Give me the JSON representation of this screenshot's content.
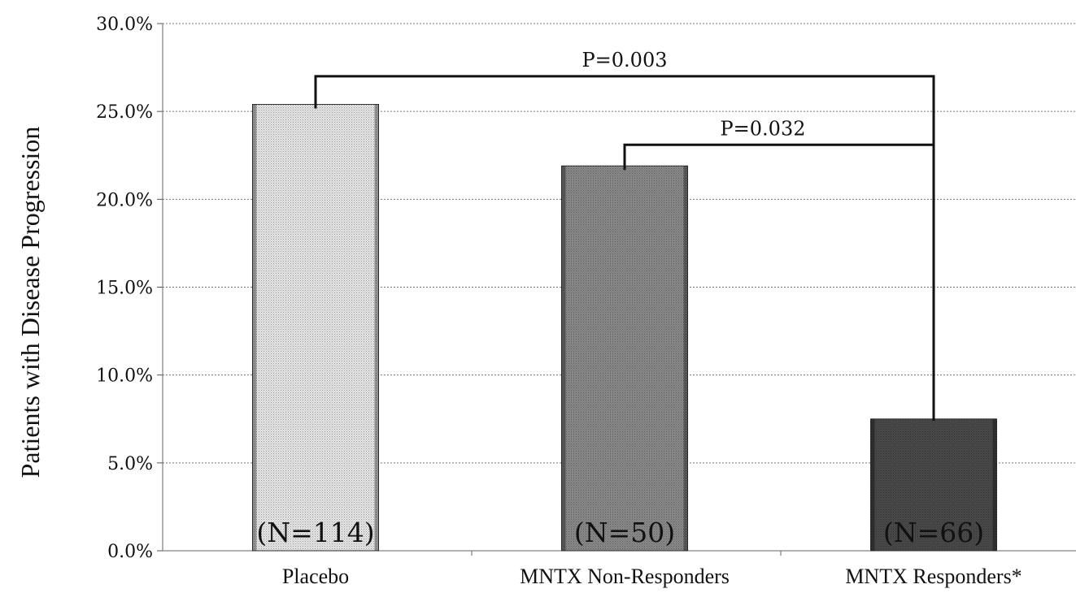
{
  "chart_data": {
    "type": "bar",
    "categories": [
      "Placebo",
      "MNTX Non-Responders",
      "MNTX Responders*"
    ],
    "values": [
      25.4,
      21.9,
      7.5
    ],
    "n_labels": [
      "(N=114)",
      "(N=50)",
      "(N=66)"
    ],
    "ylabel": "Patients with Disease Progression",
    "xlabel": "",
    "ylim": [
      0,
      30
    ],
    "yticks": [
      0,
      5,
      10,
      15,
      20,
      25,
      30
    ],
    "ytick_labels": [
      "0.0%",
      "5.0%",
      "10.0%",
      "15.0%",
      "20.0%",
      "25.0%",
      "30.0%"
    ],
    "grid": true,
    "bar_colors": [
      "#e6e6e6",
      "#8a8a8a",
      "#4a4a4a"
    ],
    "significance": [
      {
        "from": 0,
        "to": 2,
        "label": "P=0.003",
        "level": 27
      },
      {
        "from": 1,
        "to": 2,
        "label": "P=0.032",
        "level": 23.1
      }
    ]
  }
}
